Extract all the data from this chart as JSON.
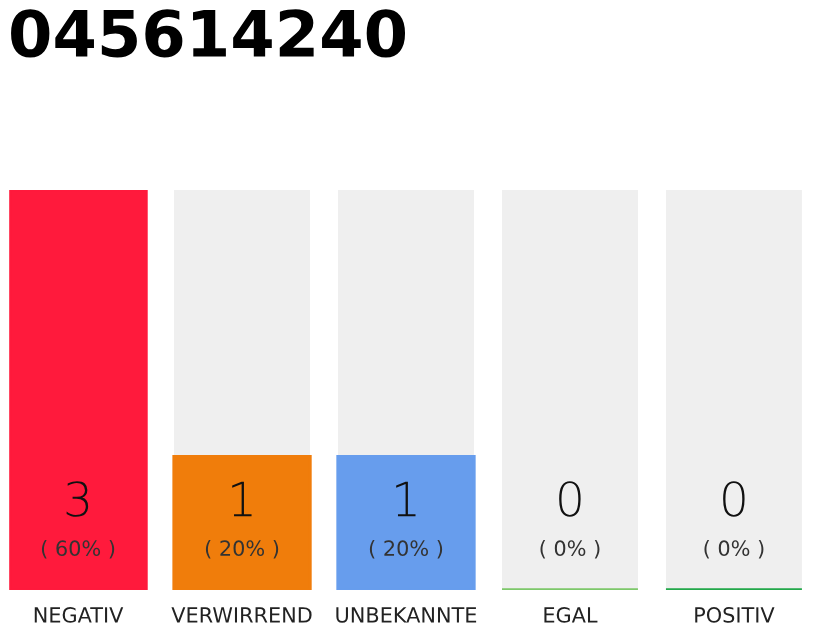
{
  "chart_data": {
    "type": "bar",
    "title": "045614240",
    "categories": [
      "NEGATIV",
      "VERWIRREND",
      "UNBEKANNTE",
      "EGAL",
      "POSITIV"
    ],
    "values": [
      3,
      1,
      1,
      0,
      0
    ],
    "colors": [
      "#ff1a3c",
      "#f07d0b",
      "#679ded",
      "#7dc86a",
      "#22a84a"
    ],
    "data_labels": true,
    "annotations": [
      {
        "text": "( 60% )",
        "x": "NEGATIV",
        "y": 0
      },
      {
        "text": "( 20% )",
        "x": "VERWIRREND",
        "y": 0
      },
      {
        "text": "( 20% )",
        "x": "UNBEKANNTE",
        "y": 0
      },
      {
        "text": "( 0% )",
        "x": "EGAL",
        "y": 0
      },
      {
        "text": "( 0% )",
        "x": "POSITIV",
        "y": 0
      }
    ],
    "grid": false,
    "legend": false
  }
}
